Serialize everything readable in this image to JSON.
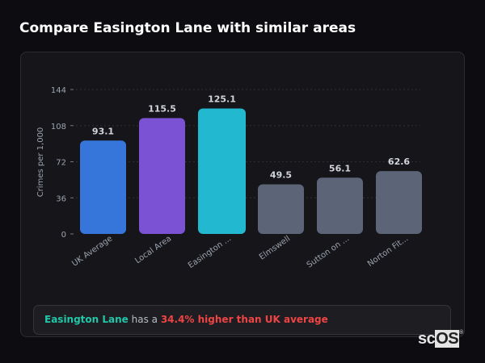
{
  "title": "Compare Easington Lane with similar areas",
  "chart_data": {
    "type": "bar",
    "ylabel": "Crimes per 1,000",
    "ylim": [
      0,
      144
    ],
    "yticks": [
      0,
      36,
      72,
      108,
      144
    ],
    "grid": true,
    "categories": [
      "UK Average",
      "Local Area",
      "Easington ...",
      "Elmswell",
      "Sutton on ...",
      "Norton Fit..."
    ],
    "values": [
      93.1,
      115.5,
      125.1,
      49.5,
      56.1,
      62.6
    ],
    "labels": [
      "93.1",
      "115.5",
      "125.1",
      "49.5",
      "56.1",
      "62.6"
    ],
    "colors": [
      "#3676db",
      "#7b52d4",
      "#22b8cf",
      "#5b6577",
      "#5b6577",
      "#5b6577"
    ]
  },
  "footer": {
    "area": "Easington Lane",
    "mid": " has a ",
    "stat": "34.4% higher than UK average"
  },
  "watermark": "scOS"
}
